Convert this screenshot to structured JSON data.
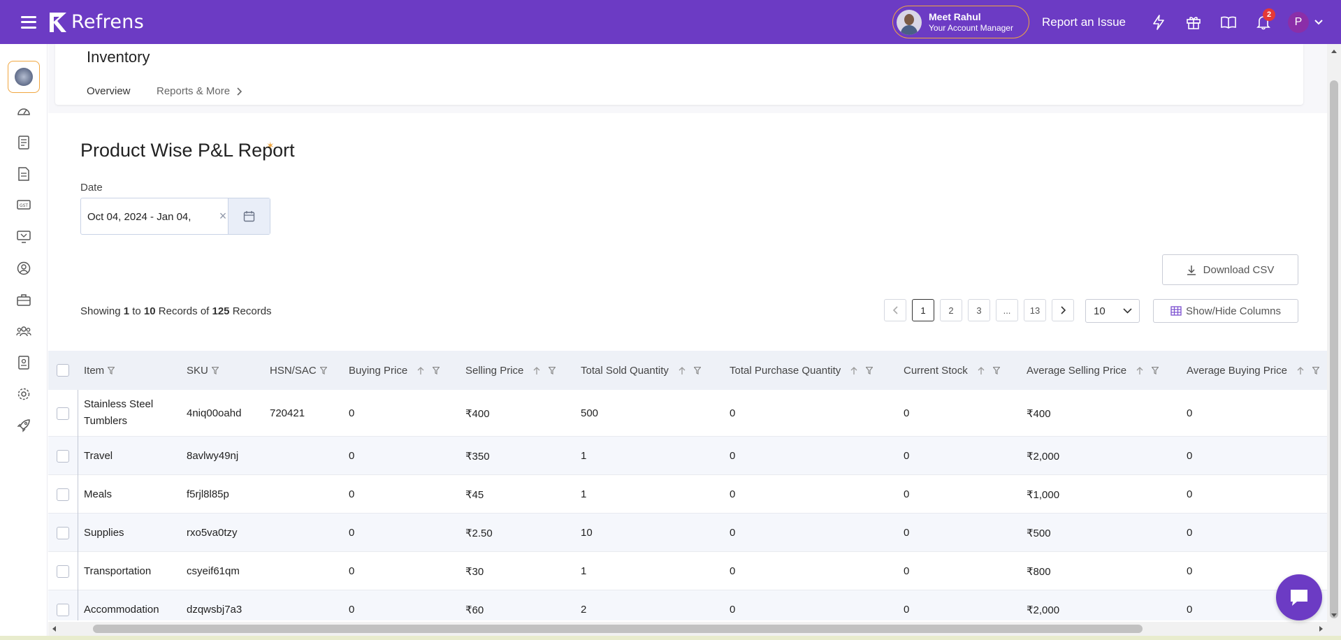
{
  "app": {
    "brand": "Refrens",
    "manager_name": "Meet Rahul",
    "manager_role": "Your Account Manager",
    "report_issue": "Report an Issue",
    "notification_count": "2",
    "user_initial": "P"
  },
  "colors": {
    "topbar": "#6c3bc4",
    "accent": "#f0a640",
    "badge": "#e53935"
  },
  "header": {
    "title": "Inventory",
    "tabs": [
      {
        "label": "Overview"
      },
      {
        "label": "Reports & More"
      }
    ]
  },
  "report": {
    "title": "Product Wise P&L Report",
    "date_label": "Date",
    "date_value": "Oct 04, 2024 - Jan 04,",
    "download_label": "Download CSV",
    "records": {
      "prefix": "Showing",
      "from": "1",
      "to_word": "to",
      "to": "10",
      "records_word": "Records",
      "of_word": "of",
      "total": "125",
      "suffix": "Records"
    },
    "pagination": {
      "pages": [
        "1",
        "2",
        "3",
        "...",
        "13"
      ],
      "current": "1"
    },
    "per_page": "10",
    "show_hide_label": "Show/Hide Columns"
  },
  "table": {
    "columns": [
      "Item",
      "SKU",
      "HSN/SAC",
      "Buying Price",
      "Selling Price",
      "Total Sold Quantity",
      "Total Purchase Quantity",
      "Current Stock",
      "Average Selling Price",
      "Average Buying Price"
    ],
    "rows": [
      [
        "Stainless Steel Tumblers",
        "4niq00oahd",
        "720421",
        "0",
        "₹400",
        "500",
        "0",
        "0",
        "₹400",
        "0"
      ],
      [
        "Travel",
        "8avlwy49nj",
        "",
        "0",
        "₹350",
        "1",
        "0",
        "0",
        "₹2,000",
        "0"
      ],
      [
        "Meals",
        "f5rjl8l85p",
        "",
        "0",
        "₹45",
        "1",
        "0",
        "0",
        "₹1,000",
        "0"
      ],
      [
        "Supplies",
        "rxo5va0tzy",
        "",
        "0",
        "₹2.50",
        "10",
        "0",
        "0",
        "₹500",
        "0"
      ],
      [
        "Transportation",
        "csyeif61qm",
        "",
        "0",
        "₹30",
        "1",
        "0",
        "0",
        "₹800",
        "0"
      ],
      [
        "Accommodation",
        "dzqwsbj7a3",
        "",
        "0",
        "₹60",
        "2",
        "0",
        "0",
        "₹2,000",
        "0"
      ]
    ]
  },
  "icons": {
    "sidebar": [
      "dashboard-icon",
      "document-icon",
      "invoice-icon",
      "gst-icon",
      "monitor-icon",
      "user-icon",
      "briefcase-icon",
      "team-icon",
      "id-card-icon",
      "settings-icon",
      "rocket-icon"
    ]
  }
}
